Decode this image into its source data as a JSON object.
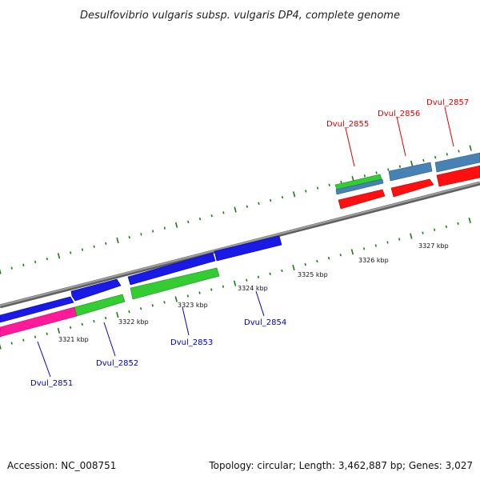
{
  "title": "Desulfovibrio vulgaris subsp. vulgaris DP4, complete genome",
  "footer": {
    "accession": "Accession: NC_008751",
    "summary": "Topology: circular; Length: 3,462,887 bp; Genes: 3,027"
  },
  "colors": {
    "backbone": "#808080",
    "tick": "#1a7a1a",
    "gene_blue": "#1a1ae6",
    "gene_green": "#33cc33",
    "gene_magenta": "#ff1a99",
    "gene_steel": "#4682b4",
    "gene_red": "#ff1010",
    "label_blue": "#0000cc",
    "label_red": "#e00000"
  },
  "scale_labels": [
    "3321 kbp",
    "3322 kbp",
    "3323 kbp",
    "3324 kbp",
    "3325 kbp",
    "3326 kbp",
    "3327 kbp"
  ],
  "gene_labels": [
    {
      "name": "Dvul_2851",
      "color": "label_blue"
    },
    {
      "name": "Dvul_2852",
      "color": "label_blue"
    },
    {
      "name": "Dvul_2853",
      "color": "label_blue"
    },
    {
      "name": "Dvul_2854",
      "color": "label_blue"
    },
    {
      "name": "Dvul_2855",
      "color": "label_red"
    },
    {
      "name": "Dvul_2856",
      "color": "label_red"
    },
    {
      "name": "Dvul_2857",
      "color": "label_red"
    }
  ]
}
